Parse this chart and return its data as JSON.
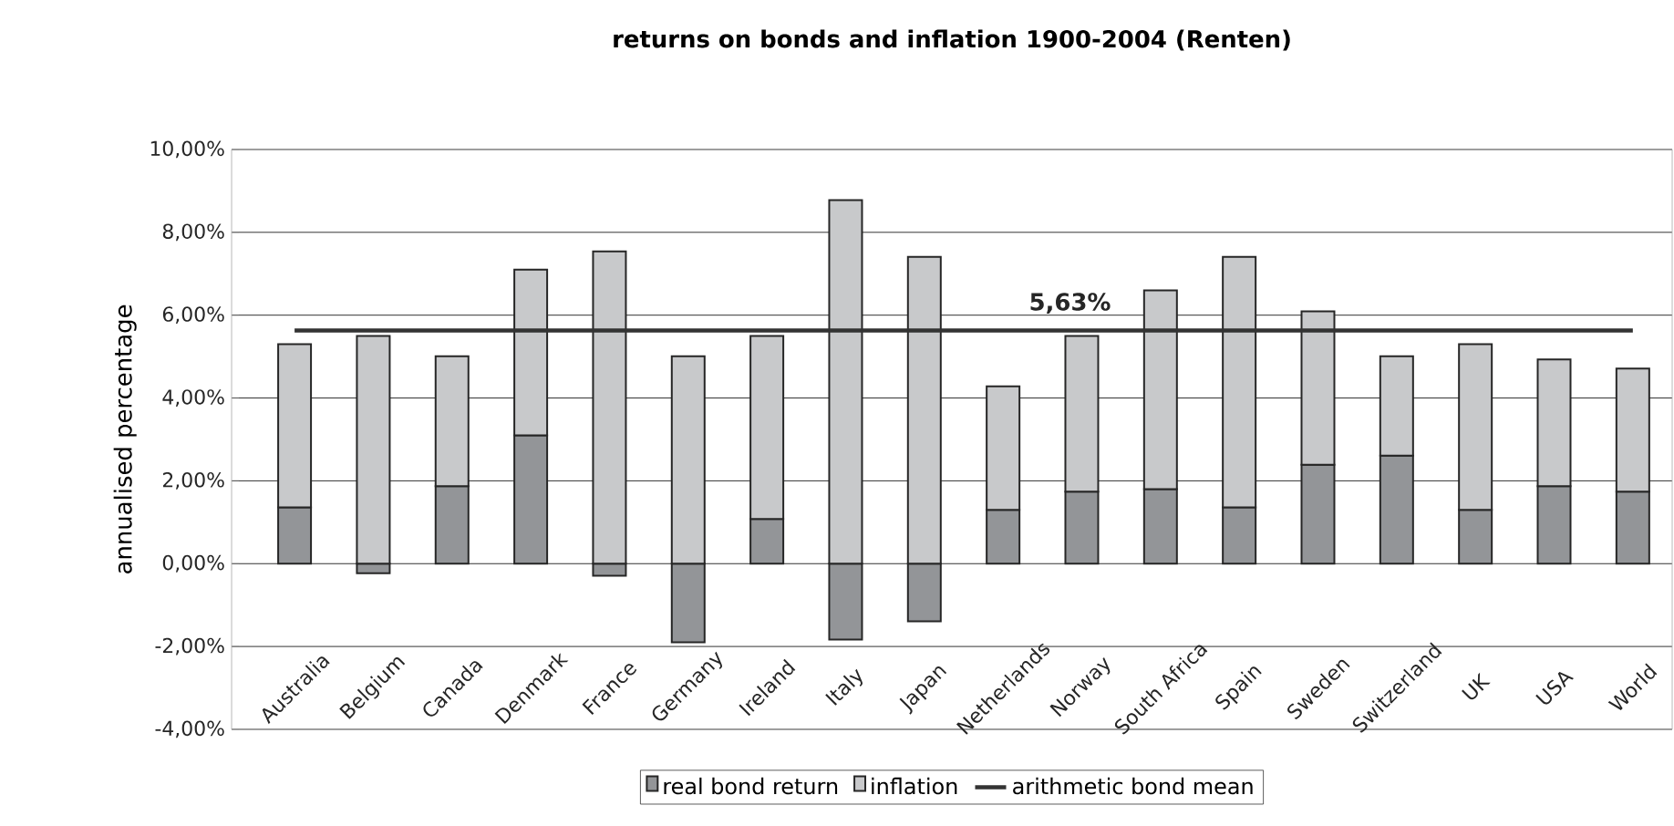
{
  "chart_data": {
    "type": "bar",
    "title": "returns on bonds and inflation 1900-2004 (Renten)",
    "ylabel": "annualised percentage",
    "categories": [
      "Australia",
      "Belgium",
      "Canada",
      "Denmark",
      "France",
      "Germany",
      "Ireland",
      "Italy",
      "Japan",
      "Netherlands",
      "Norway",
      "South Africa",
      "Spain",
      "Sweden",
      "Switzerland",
      "UK",
      "USA",
      "World"
    ],
    "stacked": true,
    "series": [
      {
        "name": "real bond return",
        "color": "#939598",
        "values": [
          1.36,
          -0.23,
          1.87,
          3.1,
          -0.29,
          -1.9,
          1.08,
          -1.83,
          -1.39,
          1.3,
          1.74,
          1.8,
          1.36,
          2.39,
          2.61,
          1.3,
          1.87,
          1.74
        ]
      },
      {
        "name": "inflation",
        "color": "#c8c9cb",
        "values": [
          3.94,
          5.5,
          3.14,
          4.0,
          7.54,
          5.01,
          4.42,
          8.78,
          7.41,
          2.98,
          3.76,
          4.8,
          6.05,
          3.7,
          2.4,
          4.0,
          3.06,
          2.97
        ]
      },
      {
        "name": "arithmetic bond mean",
        "type": "line",
        "color": "#333333",
        "marker": "none",
        "values": [
          5.63,
          5.63,
          5.63,
          5.63,
          5.63,
          5.63,
          5.63,
          5.63,
          5.63,
          5.63,
          5.63,
          5.63,
          5.63,
          5.63,
          5.63,
          5.63,
          5.63,
          5.63
        ]
      }
    ],
    "annotations": [
      {
        "text": "5,63%",
        "x": "Netherlands",
        "y": 5.63
      }
    ],
    "ylim": [
      -4,
      10
    ],
    "yticks": [
      {
        "value": -4,
        "label": "-4,00%"
      },
      {
        "value": -2,
        "label": "-2,00%"
      },
      {
        "value": 0,
        "label": "0,00%"
      },
      {
        "value": 2,
        "label": "2,00%"
      },
      {
        "value": 4,
        "label": "4,00%"
      },
      {
        "value": 6,
        "label": "6,00%"
      },
      {
        "value": 8,
        "label": "8,00%"
      },
      {
        "value": 10,
        "label": "10,00%"
      }
    ],
    "grid": "y",
    "legend": "bottom"
  }
}
